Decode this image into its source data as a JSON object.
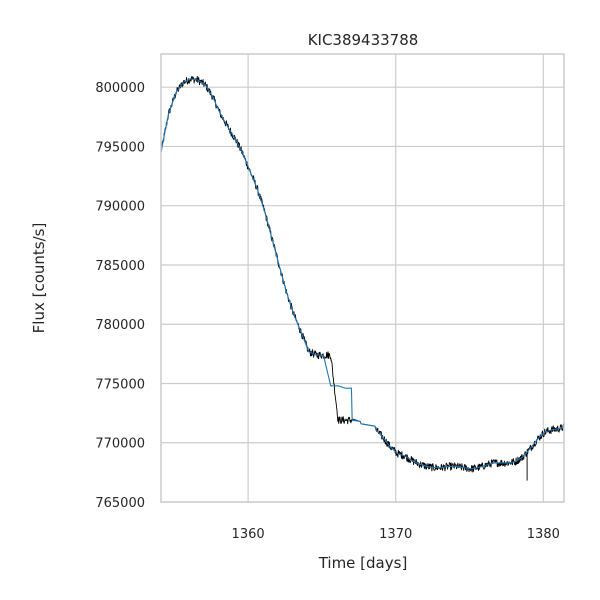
{
  "chart_data": {
    "type": "line",
    "title": "KIC389433788",
    "xlabel": "Time [days]",
    "ylabel": "Flux [counts/s]",
    "xlim": [
      1354.1,
      1381.4
    ],
    "ylim": [
      765000,
      802800
    ],
    "x_ticks": [
      1360,
      1370,
      1380
    ],
    "x_tick_labels": [
      "1360",
      "1370",
      "1380"
    ],
    "y_ticks": [
      765000,
      770000,
      775000,
      780000,
      785000,
      790000,
      795000,
      800000
    ],
    "y_tick_labels": [
      "765000",
      "770000",
      "775000",
      "780000",
      "785000",
      "790000",
      "795000",
      "800000"
    ],
    "grid": true,
    "series": [
      {
        "color": "#000000",
        "noisy": true,
        "x": [
          1354.1,
          1354.6,
          1355.1,
          1355.6,
          1356.1,
          1356.6,
          1357.1,
          1357.6,
          1358.1,
          1358.6,
          1359.1,
          1359.6,
          1360.1,
          1360.6,
          1361.1,
          1361.6,
          1362.1,
          1362.6,
          1363.1,
          1363.6,
          1364.1,
          1364.6,
          1365.1,
          1365.6,
          1366.1,
          1366.6,
          1367.0,
          1367.05,
          1367.6,
          1367.65,
          1368.6,
          1368.65,
          1369.1,
          1369.6,
          1370.1,
          1370.6,
          1371.1,
          1371.6,
          1372.1,
          1372.6,
          1373.1,
          1373.6,
          1374.1,
          1374.6,
          1375.1,
          1375.6,
          1376.1,
          1376.6,
          1377.1,
          1377.6,
          1378.1,
          1378.6,
          1379.1,
          1379.6,
          1380.1,
          1380.6,
          1381.1,
          1381.4
        ],
        "y": [
          794500,
          797700,
          799500,
          800400,
          800700,
          800600,
          800200,
          799200,
          797800,
          796700,
          795700,
          794500,
          793000,
          791500,
          789600,
          787300,
          785000,
          782700,
          780800,
          779300,
          777700,
          777400,
          777400,
          777400,
          771900,
          771900,
          771900,
          772000,
          771800,
          771600,
          771400,
          771100,
          770500,
          769700,
          769100,
          768900,
          768500,
          768200,
          768000,
          767900,
          767900,
          768000,
          768000,
          767900,
          767800,
          767900,
          768100,
          768300,
          768300,
          768300,
          768400,
          768800,
          769500,
          770300,
          770900,
          771100,
          771200,
          771300
        ]
      },
      {
        "color": "#1f77b4",
        "noisy": false,
        "x": [
          1354.1,
          1354.6,
          1355.1,
          1355.6,
          1356.1,
          1356.6,
          1357.1,
          1357.6,
          1358.1,
          1358.6,
          1359.1,
          1359.6,
          1360.1,
          1360.6,
          1361.1,
          1361.6,
          1362.1,
          1362.6,
          1363.1,
          1363.6,
          1364.1,
          1364.6,
          1365.1,
          1365.6,
          1366.1,
          1366.6,
          1367.0,
          1367.05,
          1367.6,
          1367.65,
          1368.6,
          1368.65,
          1369.1,
          1369.6,
          1370.1,
          1370.6,
          1371.1,
          1371.6,
          1372.1,
          1372.6,
          1373.1,
          1373.6,
          1374.1,
          1374.6,
          1375.1,
          1375.6,
          1376.1,
          1376.6,
          1377.1,
          1377.6,
          1378.1,
          1378.6,
          1379.1,
          1379.6,
          1380.1,
          1380.6,
          1381.1,
          1381.4
        ],
        "y": [
          794500,
          797700,
          799500,
          800400,
          800700,
          800600,
          800200,
          799200,
          797800,
          796700,
          795700,
          794500,
          793000,
          791500,
          789600,
          787300,
          785000,
          782700,
          780800,
          779300,
          777700,
          777400,
          777400,
          774800,
          774800,
          774600,
          774600,
          771900,
          771800,
          771600,
          771400,
          771100,
          770500,
          769700,
          769100,
          768900,
          768500,
          768200,
          768000,
          767900,
          767900,
          768000,
          768000,
          767900,
          767800,
          767900,
          768100,
          768300,
          768300,
          768300,
          768400,
          768800,
          769500,
          770300,
          770900,
          771100,
          771200,
          771300
        ]
      }
    ]
  }
}
